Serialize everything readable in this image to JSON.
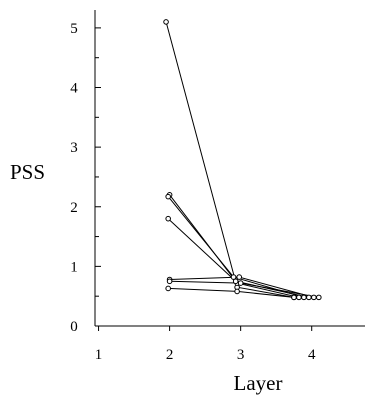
{
  "chart_data": {
    "type": "line",
    "title": "",
    "xlabel": "Layer",
    "ylabel": "PSS",
    "xlim": [
      0.95,
      4.75
    ],
    "ylim": [
      0,
      5.3
    ],
    "xticks": [
      1,
      2,
      3,
      4
    ],
    "xtick_labels": [
      "1",
      "2",
      "3",
      "4"
    ],
    "yticks": [
      0,
      1,
      2,
      3,
      4,
      5
    ],
    "ytick_labels": [
      "0",
      "1",
      "2",
      "3",
      "4",
      "5"
    ],
    "grid": false,
    "series": [
      {
        "x": [
          1.95,
          2.95,
          3.75
        ],
        "y": [
          5.1,
          0.65,
          0.48
        ]
      },
      {
        "x": [
          2.0,
          2.95,
          3.82
        ],
        "y": [
          2.2,
          0.72,
          0.48
        ]
      },
      {
        "x": [
          1.98,
          2.9,
          3.89
        ],
        "y": [
          2.17,
          0.82,
          0.48
        ]
      },
      {
        "x": [
          1.98,
          2.93,
          3.96
        ],
        "y": [
          1.8,
          0.75,
          0.48
        ]
      },
      {
        "x": [
          2.0,
          2.98,
          4.03
        ],
        "y": [
          0.78,
          0.82,
          0.48
        ]
      },
      {
        "x": [
          2.0,
          3.0,
          4.1
        ],
        "y": [
          0.75,
          0.72,
          0.48
        ]
      },
      {
        "x": [
          1.98,
          2.95,
          3.75
        ],
        "y": [
          0.63,
          0.58,
          0.48
        ]
      }
    ]
  }
}
